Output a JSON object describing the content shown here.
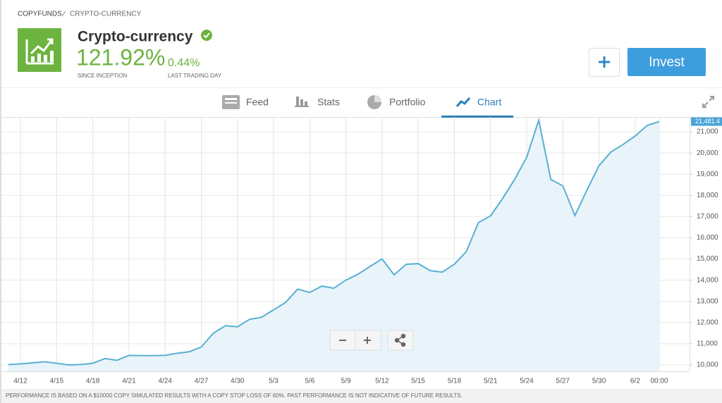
{
  "breadcrumb": [
    "COPYFUNDS",
    "CRYPTO-CURRENCY"
  ],
  "header": {
    "title": "Crypto-currency",
    "gain": "121.92%",
    "gain_label": "SINCE INCEPTION",
    "daily": "0.44%",
    "daily_label": "LAST TRADING DAY",
    "invest_button": "Invest"
  },
  "tabs": [
    "Feed",
    "Stats",
    "Portfolio",
    "Chart"
  ],
  "chart_data": {
    "type": "area",
    "color": "#5aafd3",
    "categories": [
      null,
      "4/12",
      null,
      null,
      "4/15",
      null,
      null,
      "4/18",
      null,
      null,
      "4/21",
      null,
      null,
      "4/24",
      null,
      null,
      "4/27",
      null,
      null,
      "4/30",
      null,
      null,
      "5/3",
      null,
      null,
      "5/6",
      null,
      null,
      "5/9",
      null,
      null,
      "5/12",
      null,
      null,
      "5/15",
      null,
      null,
      "5/18",
      null,
      null,
      "5/21",
      null,
      null,
      "5/24",
      null,
      null,
      "5/27",
      null,
      null,
      "5/30",
      null,
      null,
      "6/2",
      null,
      "00:00"
    ],
    "values": [
      10020,
      10050,
      10100,
      10150,
      10080,
      10000,
      10020,
      10080,
      10300,
      10220,
      10450,
      10440,
      10440,
      10450,
      10550,
      10620,
      10850,
      11500,
      11850,
      11800,
      12150,
      12250,
      12600,
      12950,
      13580,
      13420,
      13720,
      13620,
      14000,
      14280,
      14650,
      15000,
      14250,
      14750,
      14780,
      14450,
      14380,
      14750,
      15350,
      16720,
      17030,
      17850,
      18750,
      19800,
      21550,
      18750,
      18450,
      17050,
      18250,
      19400,
      20050,
      20400,
      20800,
      21300,
      21481.4
    ],
    "value_labels": [
      null,
      null,
      null,
      null,
      null,
      null,
      null,
      null,
      null,
      null,
      null,
      null,
      null,
      null,
      null,
      null,
      null,
      null,
      null,
      null,
      null,
      null,
      null,
      null,
      null,
      null,
      null,
      null,
      null,
      null,
      null,
      null,
      null,
      null,
      null,
      null,
      null,
      null,
      null,
      null,
      null,
      null,
      null,
      null,
      null,
      null,
      null,
      null,
      null,
      null,
      null,
      null,
      null,
      null,
      "21,481.4"
    ],
    "ylim": [
      9700,
      21700
    ],
    "yticks": [
      {
        "value": 10000,
        "label": "10,000"
      },
      {
        "value": 11000,
        "label": "11,000"
      },
      {
        "value": 12000,
        "label": "12,000"
      },
      {
        "value": 13000,
        "label": "13,000"
      },
      {
        "value": 14000,
        "label": "14,000"
      },
      {
        "value": 15000,
        "label": "15,000"
      },
      {
        "value": 16000,
        "label": "16,000"
      },
      {
        "value": 17000,
        "label": "17,000"
      },
      {
        "value": 18000,
        "label": "18,000"
      },
      {
        "value": 19000,
        "label": "19,000"
      },
      {
        "value": 20000,
        "label": "20,000"
      },
      {
        "value": 21000,
        "label": "21,000"
      }
    ],
    "grid": true
  },
  "disclaimer": "PERFORMANCE IS BASED ON A $10000 COPY SIMULATED RESULTS WITH A COPY STOP LOSS OF 60%. PAST PERFORMANCE IS NOT INDICATIVE OF FUTURE RESULTS."
}
